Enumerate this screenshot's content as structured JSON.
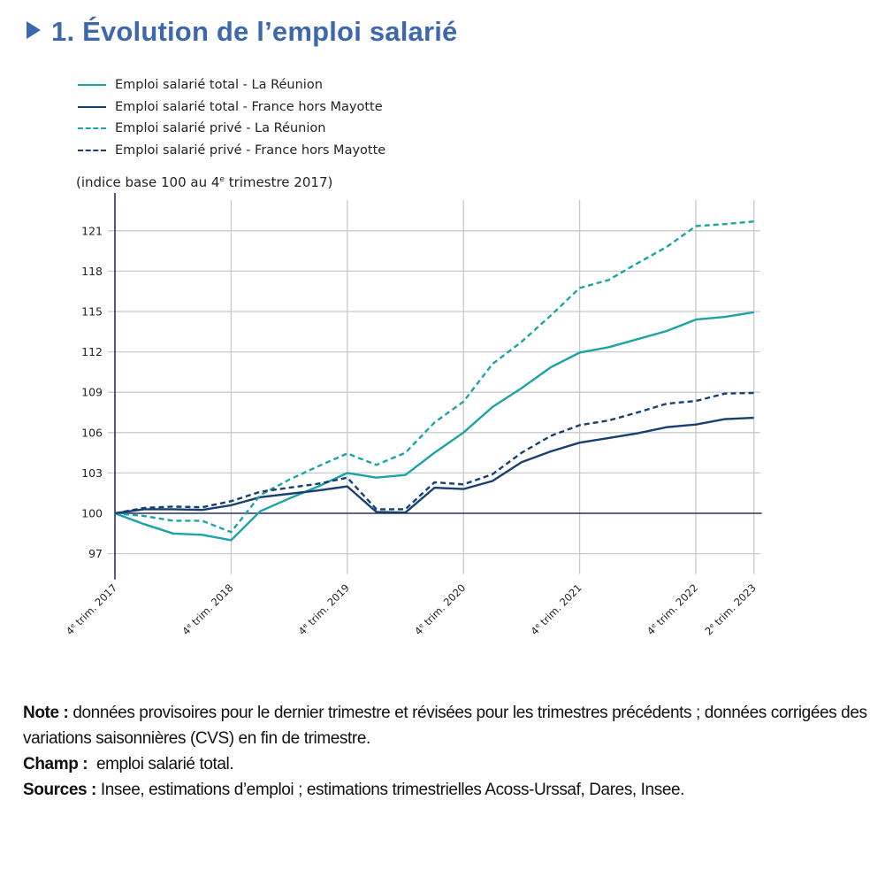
{
  "header": {
    "title": "1. Évolution de l’emploi salarié"
  },
  "chart_data": {
    "type": "line",
    "title": "1. Évolution de l’emploi salarié",
    "subtitle": "(indice base 100 au 4e trimestre 2017)",
    "subtitle_parts": [
      "(indice base 100 au 4",
      "e",
      " trimestre 2017)"
    ],
    "xlabel": "",
    "ylabel": "",
    "ylim": [
      96,
      123.5
    ],
    "yticks": [
      97,
      100,
      103,
      106,
      109,
      112,
      115,
      118,
      121
    ],
    "grid": true,
    "legend_position": "top-left",
    "baseline": 100,
    "x": [
      "T4 2017",
      "T1 2018",
      "T2 2018",
      "T3 2018",
      "T4 2018",
      "T1 2019",
      "T2 2019",
      "T3 2019",
      "T4 2019",
      "T1 2020",
      "T2 2020",
      "T3 2020",
      "T4 2020",
      "T1 2021",
      "T2 2021",
      "T3 2021",
      "T4 2021",
      "T1 2022",
      "T2 2022",
      "T3 2022",
      "T4 2022",
      "T1 2023",
      "T2 2023"
    ],
    "xtick_labels": [
      {
        "index": 0,
        "num": "4",
        "sup": "e",
        "rest": " trim. 2017"
      },
      {
        "index": 4,
        "num": "4",
        "sup": "e",
        "rest": " trim. 2018"
      },
      {
        "index": 8,
        "num": "4",
        "sup": "e",
        "rest": " trim. 2019"
      },
      {
        "index": 12,
        "num": "4",
        "sup": "e",
        "rest": " trim. 2020"
      },
      {
        "index": 16,
        "num": "4",
        "sup": "e",
        "rest": " trim. 2021"
      },
      {
        "index": 20,
        "num": "4",
        "sup": "e",
        "rest": " trim. 2022"
      },
      {
        "index": 22,
        "num": "2",
        "sup": "e",
        "rest": " trim. 2023"
      }
    ],
    "series": [
      {
        "name": "Emploi salarié total - La Réunion",
        "color": "#1ba3a8",
        "style": "solid",
        "values": [
          100,
          99.2,
          98.5,
          98.4,
          98.0,
          100.15,
          101.1,
          102.0,
          103.0,
          102.65,
          102.85,
          104.5,
          106.0,
          107.9,
          109.3,
          110.85,
          111.95,
          112.35,
          112.95,
          113.55,
          114.4,
          114.6,
          114.95
        ]
      },
      {
        "name": "Emploi salarié total - France hors Mayotte",
        "color": "#173f70",
        "style": "solid",
        "values": [
          100,
          100.3,
          100.3,
          100.25,
          100.6,
          101.2,
          101.45,
          101.7,
          102.0,
          100.1,
          100.05,
          101.9,
          101.8,
          102.4,
          103.8,
          104.6,
          105.25,
          105.6,
          105.95,
          106.4,
          106.6,
          107.0,
          107.1
        ]
      },
      {
        "name": "Emploi salarié privé - La Réunion",
        "color": "#1ba3a8",
        "style": "dashed",
        "values": [
          100,
          99.8,
          99.45,
          99.45,
          98.6,
          101.35,
          102.5,
          103.5,
          104.45,
          103.6,
          104.5,
          106.75,
          108.3,
          111.1,
          112.75,
          114.7,
          116.75,
          117.35,
          118.6,
          119.8,
          121.35,
          121.5,
          121.7
        ]
      },
      {
        "name": "Emploi salarié privé - France hors Mayotte",
        "color": "#173f70",
        "style": "dashed",
        "values": [
          100,
          100.4,
          100.5,
          100.45,
          100.9,
          101.6,
          101.9,
          102.2,
          102.65,
          100.3,
          100.3,
          102.3,
          102.15,
          102.9,
          104.5,
          105.75,
          106.55,
          106.9,
          107.5,
          108.15,
          108.35,
          108.9,
          108.95
        ]
      }
    ]
  },
  "notes": {
    "note_label": "Note :",
    "note_text": " données provisoires pour le dernier trimestre et révisées pour les trimestres précédents ; données corrigées des variations saisonnières (CVS) en fin de trimestre.",
    "champ_label": "Champ :",
    "champ_text": "  emploi salarié total.",
    "sources_label": "Sources :",
    "sources_text": " Insee, estimations d’emploi ; estimations trimestrielles Acoss-Urssaf, Dares, Insee."
  },
  "colors": {
    "title": "#3e68ad",
    "teal": "#1ba3a8",
    "navy": "#173f70",
    "axis": "#2b2f6b",
    "grid": "#c8c8c8"
  }
}
